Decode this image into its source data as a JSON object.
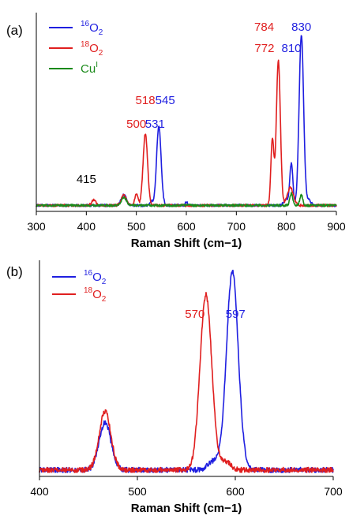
{
  "chart_data": [
    {
      "panel_label": "(a)",
      "type": "line",
      "xlabel": "Raman Shift (cm−1)",
      "ylabel": "",
      "xlim": [
        300,
        900
      ],
      "xticks": [
        300,
        400,
        500,
        600,
        700,
        800,
        900
      ],
      "yticks_shown": false,
      "legend_position": "top-left",
      "series": [
        {
          "name_sup": "16",
          "name": "O",
          "name_sub": "2",
          "color": "#1f1fe0",
          "baseline": 0.03,
          "noise": 0.006,
          "peaks": [
            [
              475,
              0.055,
              5
            ],
            [
              531,
              0.018,
              3
            ],
            [
              545,
              0.4,
              4.5
            ],
            [
              600,
              0.02,
              2
            ],
            [
              800,
              0.03,
              5
            ],
            [
              810,
              0.21,
              3
            ],
            [
              830,
              0.86,
              4.5
            ],
            [
              845,
              0.03,
              4
            ]
          ]
        },
        {
          "name_sup": "18",
          "name": "O",
          "name_sub": "2",
          "color": "#e01f1f",
          "baseline": 0.03,
          "noise": 0.006,
          "peaks": [
            [
              415,
              0.03,
              4
            ],
            [
              475,
              0.05,
              5
            ],
            [
              500,
              0.06,
              3
            ],
            [
              518,
              0.36,
              4.5
            ],
            [
              772,
              0.33,
              3
            ],
            [
              784,
              0.73,
              4
            ],
            [
              808,
              0.09,
              6
            ]
          ]
        },
        {
          "name_sup": "",
          "name": "Cu",
          "name_sub": "",
          "name_super2": "I",
          "color": "#1a8a1a",
          "baseline": 0.03,
          "noise": 0.006,
          "peaks": [
            [
              475,
              0.04,
              5
            ],
            [
              810,
              0.06,
              3
            ],
            [
              830,
              0.05,
              3
            ]
          ]
        }
      ],
      "annotations": [
        {
          "text": "415",
          "x": 400,
          "color": "#000000"
        },
        {
          "text": "500",
          "x": 500,
          "color": "#e01f1f"
        },
        {
          "text": "531",
          "x": 531,
          "color": "#1f1fe0"
        },
        {
          "text": "518",
          "x": 518,
          "color": "#e01f1f"
        },
        {
          "text": "545",
          "x": 545,
          "color": "#1f1fe0"
        },
        {
          "text": "772",
          "x": 772,
          "color": "#e01f1f"
        },
        {
          "text": "810",
          "x": 810,
          "color": "#1f1fe0"
        },
        {
          "text": "784",
          "x": 784,
          "color": "#e01f1f"
        },
        {
          "text": "830",
          "x": 830,
          "color": "#1f1fe0"
        }
      ]
    },
    {
      "panel_label": "(b)",
      "type": "line",
      "xlabel": "Raman Shift (cm−1)",
      "ylabel": "",
      "xlim": [
        400,
        700
      ],
      "xticks": [
        400,
        500,
        600,
        700
      ],
      "yticks_shown": false,
      "legend_position": "top-left",
      "series": [
        {
          "name_sup": "16",
          "name": "O",
          "name_sub": "2",
          "color": "#1f1fe0",
          "baseline": 0.03,
          "noise": 0.012,
          "peaks": [
            [
              467,
              0.22,
              6
            ],
            [
              578,
              0.04,
              6
            ],
            [
              597,
              0.92,
              6
            ]
          ]
        },
        {
          "name_sup": "18",
          "name": "O",
          "name_sub": "2",
          "color": "#e01f1f",
          "baseline": 0.03,
          "noise": 0.012,
          "peaks": [
            [
              467,
              0.27,
              6
            ],
            [
              570,
              0.81,
              6
            ],
            [
              590,
              0.04,
              5
            ]
          ]
        }
      ],
      "annotations": [
        {
          "text": "570",
          "x": 570,
          "color": "#e01f1f"
        },
        {
          "text": "597",
          "x": 597,
          "color": "#1f1fe0"
        }
      ]
    }
  ]
}
